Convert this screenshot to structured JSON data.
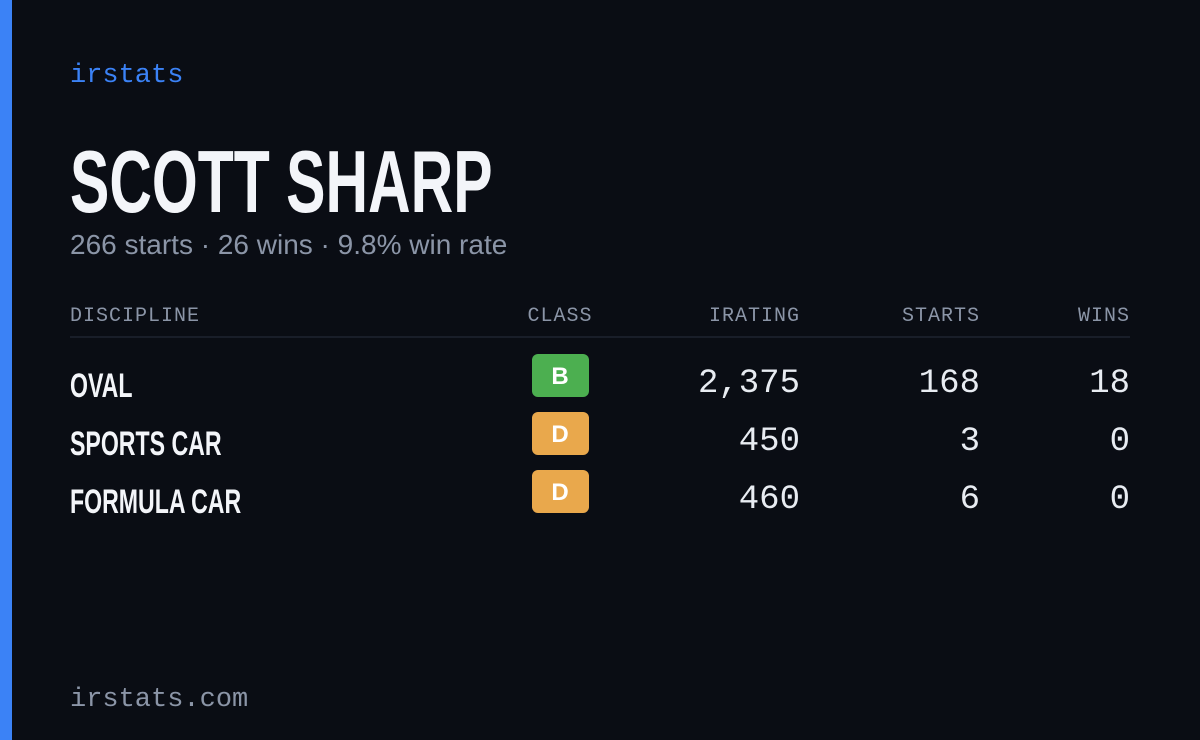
{
  "brand": "irstats",
  "driver": {
    "name": "SCOTT SHARP",
    "summary": "266 starts · 26 wins · 9.8% win rate"
  },
  "table": {
    "headers": [
      "DISCIPLINE",
      "CLASS",
      "IRATING",
      "STARTS",
      "WINS"
    ],
    "rows": [
      {
        "discipline": "OVAL",
        "class": "B",
        "class_color": "#4caf50",
        "irating": "2,375",
        "starts": "168",
        "wins": "18"
      },
      {
        "discipline": "SPORTS CAR",
        "class": "D",
        "class_color": "#e9a84c",
        "irating": "450",
        "starts": "3",
        "wins": "0"
      },
      {
        "discipline": "FORMULA CAR",
        "class": "D",
        "class_color": "#e9a84c",
        "irating": "460",
        "starts": "6",
        "wins": "0"
      }
    ]
  },
  "footer": "irstats.com"
}
